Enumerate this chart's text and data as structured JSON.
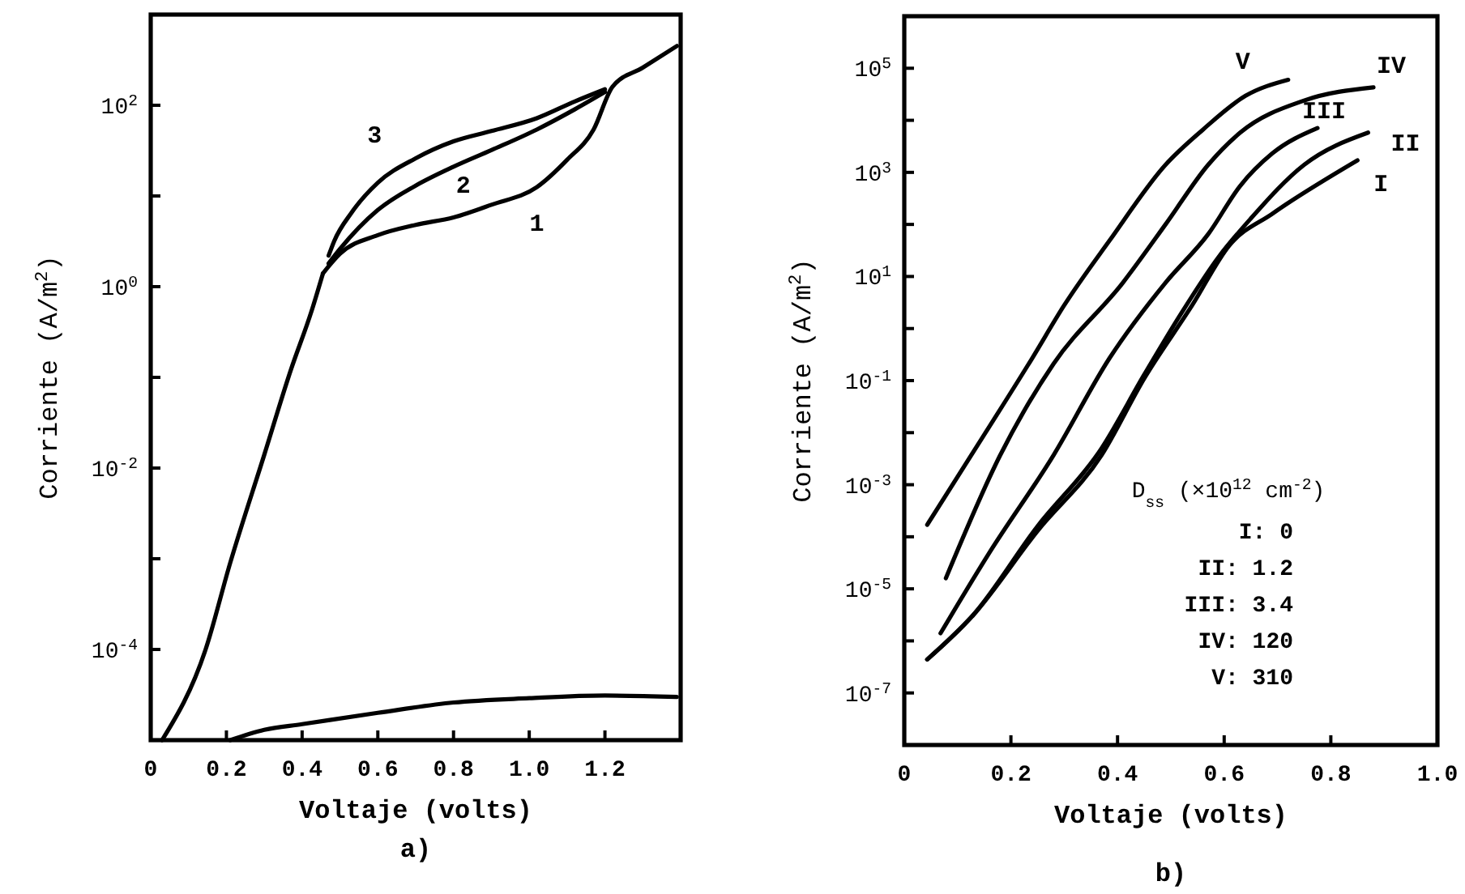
{
  "chart_data": [
    {
      "type": "line",
      "title": "a)",
      "xlabel": "Voltaje (volts)",
      "ylabel": "Corriente (A/m$^{2}$)",
      "log": "y",
      "grid": false,
      "marker": "none",
      "line_style": "solid",
      "xlim": [
        0,
        1.4
      ],
      "xticks": [
        0,
        0.2,
        0.4,
        0.6,
        0.8,
        {
          "value": 1,
          "label": "1.0"
        },
        1.2
      ],
      "ylim": [
        1e-05,
        1000
      ],
      "yticks": [
        {
          "value": 0.0001,
          "label": "10$^{-4}$"
        },
        {
          "value": 0.001,
          "label": null
        },
        {
          "value": 0.01,
          "label": "10$^{-2}$"
        },
        {
          "value": 0.1,
          "label": null
        },
        {
          "value": 1,
          "label": "10$^{0}$"
        },
        {
          "value": 10,
          "label": null
        },
        {
          "value": 100,
          "label": "10$^{2}$"
        }
      ],
      "series": [
        {
          "name": "1",
          "color": "#000000",
          "x": [
            0.455,
            0.5,
            0.6,
            0.7,
            0.8,
            0.9,
            1.02,
            1.1,
            1.17,
            1.22,
            1.3,
            1.39
          ],
          "values": [
            1.4,
            2.3,
            3.7,
            4.8,
            5.8,
            8,
            12.5,
            25,
            54,
            160,
            260,
            450
          ]
        },
        {
          "name": "2",
          "color": "#000000",
          "x": [
            0.47,
            0.5,
            0.6,
            0.7,
            0.8,
            0.9,
            1.02,
            1.12,
            1.2
          ],
          "values": [
            1.8,
            2.6,
            7,
            13,
            21,
            32,
            54,
            90,
            140
          ]
        },
        {
          "name": "3",
          "color": "#000000",
          "x": [
            0.47,
            0.485,
            0.53,
            0.6,
            0.7,
            0.8,
            0.9,
            1.02,
            1.12,
            1.2
          ],
          "values": [
            2.2,
            3.2,
            6.5,
            14,
            26,
            40,
            52,
            72,
            110,
            150
          ]
        },
        {
          "color": "#000000",
          "x": [
            0.03,
            0.145,
            0.21,
            0.3,
            0.37,
            0.425,
            0.455
          ],
          "values": [
            1e-05,
            0.0001,
            0.0009,
            0.014,
            0.12,
            0.54,
            1.4
          ]
        },
        {
          "color": "#000000",
          "x": [
            0.21,
            0.3,
            0.4,
            0.6,
            0.8,
            1.0,
            1.2,
            1.39
          ],
          "values": [
            1e-05,
            1.3e-05,
            1.5e-05,
            2e-05,
            2.6e-05,
            2.9e-05,
            3.1e-05,
            3e-05
          ]
        }
      ]
    },
    {
      "type": "line",
      "title": "b)",
      "xlabel": "Voltaje (volts)",
      "ylabel": "Corriente (A/m$^{2}$)",
      "log": "y",
      "grid": false,
      "marker": "none",
      "line_style": "solid",
      "xlim": [
        0,
        1.0
      ],
      "xticks": [
        0,
        0.2,
        0.4,
        0.6,
        0.8,
        {
          "value": 1,
          "label": "1.0"
        }
      ],
      "ylim": [
        1e-08,
        1000000
      ],
      "yticks": [
        {
          "value": 1e-07,
          "label": "10$^{-7}$"
        },
        {
          "value": 1e-06,
          "label": null
        },
        {
          "value": 1e-05,
          "label": "10$^{-5}$"
        },
        {
          "value": 0.0001,
          "label": null
        },
        {
          "value": 0.001,
          "label": "10$^{-3}$"
        },
        {
          "value": 0.01,
          "label": null
        },
        {
          "value": 0.1,
          "label": "10$^{-1}$"
        },
        {
          "value": 1,
          "label": null
        },
        {
          "value": 10,
          "label": "10$^{1}$"
        },
        {
          "value": 100,
          "label": null
        },
        {
          "value": 1000,
          "label": "10$^{3}$"
        },
        {
          "value": 10000,
          "label": null
        },
        {
          "value": 100000,
          "label": "10$^{5}$"
        }
      ],
      "annotations": [
        "D$_{ss}$ (×10$^{12}$ cm$^{-2}$)",
        "I: 0",
        "II: 1.2",
        "III: 3.4",
        "IV: 120",
        "V: 310"
      ],
      "series": [
        {
          "name": "V",
          "color": "#000000",
          "x": [
            0.043,
            0.14,
            0.24,
            0.3,
            0.385,
            0.49,
            0.56,
            0.64,
            0.72
          ],
          "values": [
            0.00017,
            0.0063,
            0.27,
            2.8,
            49,
            1400,
            6600,
            29500,
            60000
          ]
        },
        {
          "name": "IV",
          "color": "#000000",
          "x": [
            0.078,
            0.18,
            0.28,
            0.41,
            0.49,
            0.57,
            0.63,
            0.75,
            0.88
          ],
          "values": [
            1.6e-05,
            0.0037,
            0.21,
            7.6,
            100,
            1400,
            5800,
            24000,
            43000
          ]
        },
        {
          "name": "III",
          "color": "#000000",
          "x": [
            0.068,
            0.16,
            0.28,
            0.385,
            0.49,
            0.57,
            0.63,
            0.69,
            0.775
          ],
          "values": [
            1.4e-06,
            5e-05,
            0.0037,
            0.27,
            7.6,
            65,
            550,
            2300,
            7100
          ]
        },
        {
          "name": "II",
          "color": "#000000",
          "x": [
            0.043,
            0.13,
            0.25,
            0.37,
            0.45,
            0.52,
            0.59,
            0.65,
            0.75,
            0.87
          ],
          "values": [
            4.4e-07,
            3.2e-06,
            0.00016,
            0.005,
            0.13,
            2,
            24,
            130,
            1400,
            5800
          ]
        },
        {
          "name": "I",
          "color": "#000000",
          "x": [
            0.043,
            0.13,
            0.25,
            0.37,
            0.45,
            0.54,
            0.61,
            0.69,
            0.85
          ],
          "values": [
            4.4e-07,
            3.2e-06,
            0.00013,
            0.0037,
            0.11,
            2.8,
            40,
            160,
            1700
          ]
        }
      ]
    }
  ]
}
